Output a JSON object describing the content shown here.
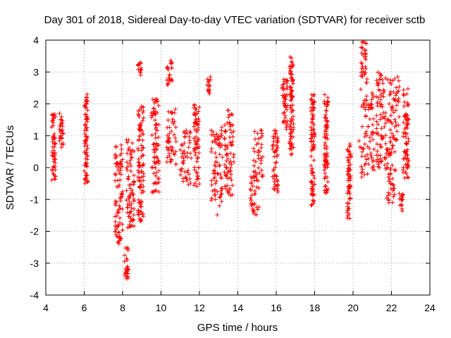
{
  "chart_data": {
    "type": "scatter",
    "title": "Day 301 of 2018, Sidereal Day-to-day VTEC variation (SDTVAR) for receiver sctb",
    "xlabel": "GPS time / hours",
    "ylabel": "SDTVAR / TECUs",
    "xlim": [
      4,
      24
    ],
    "ylim": [
      -4,
      4
    ],
    "x_ticks": [
      "4",
      "6",
      "8",
      "10",
      "12",
      "14",
      "16",
      "18",
      "20",
      "22",
      "24"
    ],
    "y_ticks": [
      "-4",
      "-3",
      "-2",
      "-1",
      "0",
      "1",
      "2",
      "3",
      "4"
    ],
    "grid": true,
    "marker": "+",
    "color": "#ff0000",
    "clusters": [
      {
        "x": [
          4.3,
          4.5
        ],
        "y": [
          -0.4,
          1.7
        ]
      },
      {
        "x": [
          4.7,
          4.9
        ],
        "y": [
          0.6,
          1.7
        ]
      },
      {
        "x": [
          6.0,
          6.2
        ],
        "y": [
          -0.5,
          2.3
        ]
      },
      {
        "x": [
          7.6,
          8.0
        ],
        "y": [
          -2.4,
          0.8
        ]
      },
      {
        "x": [
          8.1,
          8.3
        ],
        "y": [
          -3.5,
          -2.5
        ]
      },
      {
        "x": [
          8.2,
          8.6
        ],
        "y": [
          -1.9,
          0.9
        ]
      },
      {
        "x": [
          8.8,
          9.0
        ],
        "y": [
          2.9,
          3.3
        ]
      },
      {
        "x": [
          8.8,
          9.1
        ],
        "y": [
          -1.7,
          2.0
        ]
      },
      {
        "x": [
          9.5,
          9.9
        ],
        "y": [
          -0.8,
          2.2
        ]
      },
      {
        "x": [
          10.3,
          10.6
        ],
        "y": [
          2.5,
          3.4
        ]
      },
      {
        "x": [
          10.3,
          10.8
        ],
        "y": [
          0.1,
          1.9
        ]
      },
      {
        "x": [
          11.0,
          11.6
        ],
        "y": [
          -0.6,
          1.2
        ]
      },
      {
        "x": [
          11.7,
          12.0
        ],
        "y": [
          -0.6,
          2.0
        ]
      },
      {
        "x": [
          12.4,
          12.6
        ],
        "y": [
          2.3,
          2.9
        ]
      },
      {
        "x": [
          12.6,
          13.2
        ],
        "y": [
          -1.5,
          1.3
        ]
      },
      {
        "x": [
          13.3,
          13.8
        ],
        "y": [
          -0.9,
          1.9
        ]
      },
      {
        "x": [
          14.6,
          15.1
        ],
        "y": [
          -1.6,
          -0.2
        ]
      },
      {
        "x": [
          14.8,
          15.3
        ],
        "y": [
          -0.3,
          1.2
        ]
      },
      {
        "x": [
          15.8,
          16.1
        ],
        "y": [
          -0.8,
          1.2
        ]
      },
      {
        "x": [
          16.3,
          16.6
        ],
        "y": [
          1.2,
          3.0
        ]
      },
      {
        "x": [
          16.7,
          16.9
        ],
        "y": [
          0.4,
          3.5
        ]
      },
      {
        "x": [
          17.8,
          18.0
        ],
        "y": [
          -1.2,
          2.3
        ]
      },
      {
        "x": [
          18.5,
          18.7
        ],
        "y": [
          -0.8,
          2.3
        ]
      },
      {
        "x": [
          19.7,
          19.9
        ],
        "y": [
          -1.6,
          0.9
        ]
      },
      {
        "x": [
          20.4,
          20.7
        ],
        "y": [
          2.8,
          4.0
        ]
      },
      {
        "x": [
          20.3,
          21.1
        ],
        "y": [
          -0.3,
          2.8
        ]
      },
      {
        "x": [
          21.2,
          21.7
        ],
        "y": [
          0.0,
          3.0
        ]
      },
      {
        "x": [
          21.7,
          22.2
        ],
        "y": [
          -1.1,
          1.0
        ]
      },
      {
        "x": [
          21.8,
          22.4
        ],
        "y": [
          0.8,
          2.9
        ]
      },
      {
        "x": [
          22.4,
          22.6
        ],
        "y": [
          -1.4,
          -0.8
        ]
      },
      {
        "x": [
          22.6,
          22.9
        ],
        "y": [
          -0.4,
          2.5
        ]
      }
    ]
  }
}
